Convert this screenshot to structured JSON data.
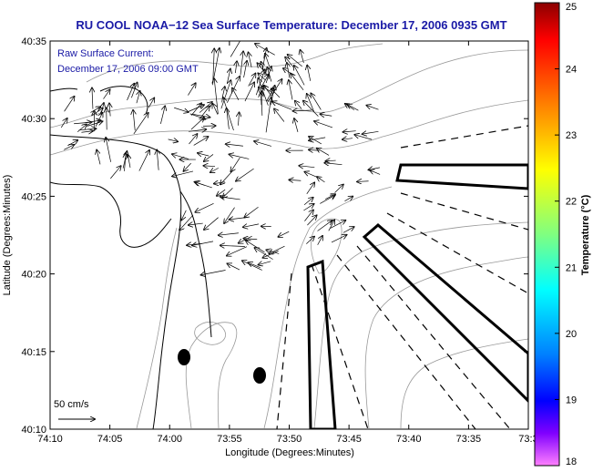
{
  "title": "RU COOL  NOAA−12  Sea Surface Temperature:  December 17, 2006 0935 GMT",
  "annotation": {
    "line1": "Raw Surface Current:",
    "line2": "December 17, 2006 09:00 GMT"
  },
  "scale": {
    "label": "50 cm/s"
  },
  "x_axis": {
    "label": "Longitude (Degrees:Minutes)",
    "ticks": [
      "74:10",
      "74:05",
      "74:00",
      "73:55",
      "73:50",
      "73:45",
      "73:40",
      "73:35",
      "73:3"
    ]
  },
  "y_axis": {
    "label": "Latitude (Degrees:Minutes)",
    "ticks": [
      "40:35",
      "40:30",
      "40:25",
      "40:20",
      "40:15",
      "40:10"
    ]
  },
  "colorbar": {
    "label": "Temperature (°C)",
    "ticks": [
      "25",
      "24",
      "23",
      "22",
      "21",
      "20",
      "19",
      "18"
    ]
  },
  "colors": {
    "title": "#1a1aa6",
    "frame": "#000000",
    "bathymetry": "#999999"
  }
}
